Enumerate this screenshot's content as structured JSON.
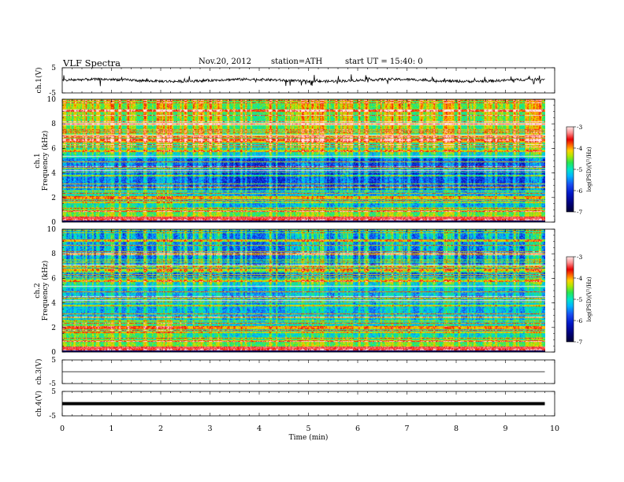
{
  "header": {
    "title": "VLF  Spectra",
    "date": "Nov.20, 2012",
    "station": "station=ATH",
    "start": "start  UT  =    15:40: 0"
  },
  "colors": {
    "colormap": [
      "#000033",
      "#00007a",
      "#0018c8",
      "#1a4cf0",
      "#00b4ff",
      "#00e6c8",
      "#28e650",
      "#b4e600",
      "#ffd200",
      "#ff6e00",
      "#e60000",
      "#ff9090",
      "#ffe6e6"
    ],
    "trace": "#000000",
    "axis": "#000000"
  },
  "chart_data": [
    {
      "type": "line",
      "panel": "ch1-waveform",
      "ylabel": "ch.1(V)",
      "ylim": [
        -5,
        5
      ],
      "yticks": [
        "5",
        "-5"
      ],
      "approx_level": 0,
      "noise_amplitude": 1
    },
    {
      "type": "heatmap",
      "panel": "ch1-spectrogram",
      "ylabel": "ch.1 Frequency (kHz)",
      "ylim": [
        0,
        10
      ],
      "yticks": [
        "0",
        "2",
        "4",
        "6",
        "8",
        "10"
      ],
      "colorbar": {
        "label": "log(PSD)(V²/Hz)",
        "range": [
          -7,
          -3
        ],
        "ticks": [
          "-3",
          "-4",
          "-5",
          "-6",
          "-7"
        ]
      },
      "switch_time_min": 2.45
    },
    {
      "type": "heatmap",
      "panel": "ch2-spectrogram",
      "ylabel": "ch.2 Frequency (kHz)",
      "ylim": [
        0,
        10
      ],
      "yticks": [
        "0",
        "2",
        "4",
        "6",
        "8",
        "10"
      ],
      "colorbar": {
        "label": "log(PSD)(V²/Hz)",
        "range": [
          -7,
          -3
        ],
        "ticks": [
          "-3",
          "-4",
          "-5",
          "-6",
          "-7"
        ]
      },
      "switch_time_min": 2.45
    },
    {
      "type": "line",
      "panel": "ch3-waveform",
      "ylabel": "ch.3(V)",
      "ylim": [
        -5,
        5
      ],
      "yticks": [
        "5",
        "-5"
      ],
      "approx_level": 0
    },
    {
      "type": "line",
      "panel": "ch4-waveform",
      "ylabel": "ch.4(V)",
      "ylim": [
        -5,
        5
      ],
      "yticks": [
        "5",
        "-5"
      ],
      "approx_level": 0
    }
  ],
  "x_axis": {
    "label": "Time  (min)",
    "xlim": [
      0,
      10
    ],
    "ticks": [
      "0",
      "1",
      "2",
      "3",
      "4",
      "5",
      "6",
      "7",
      "8",
      "9",
      "10"
    ],
    "data_end_min": 9.8
  }
}
